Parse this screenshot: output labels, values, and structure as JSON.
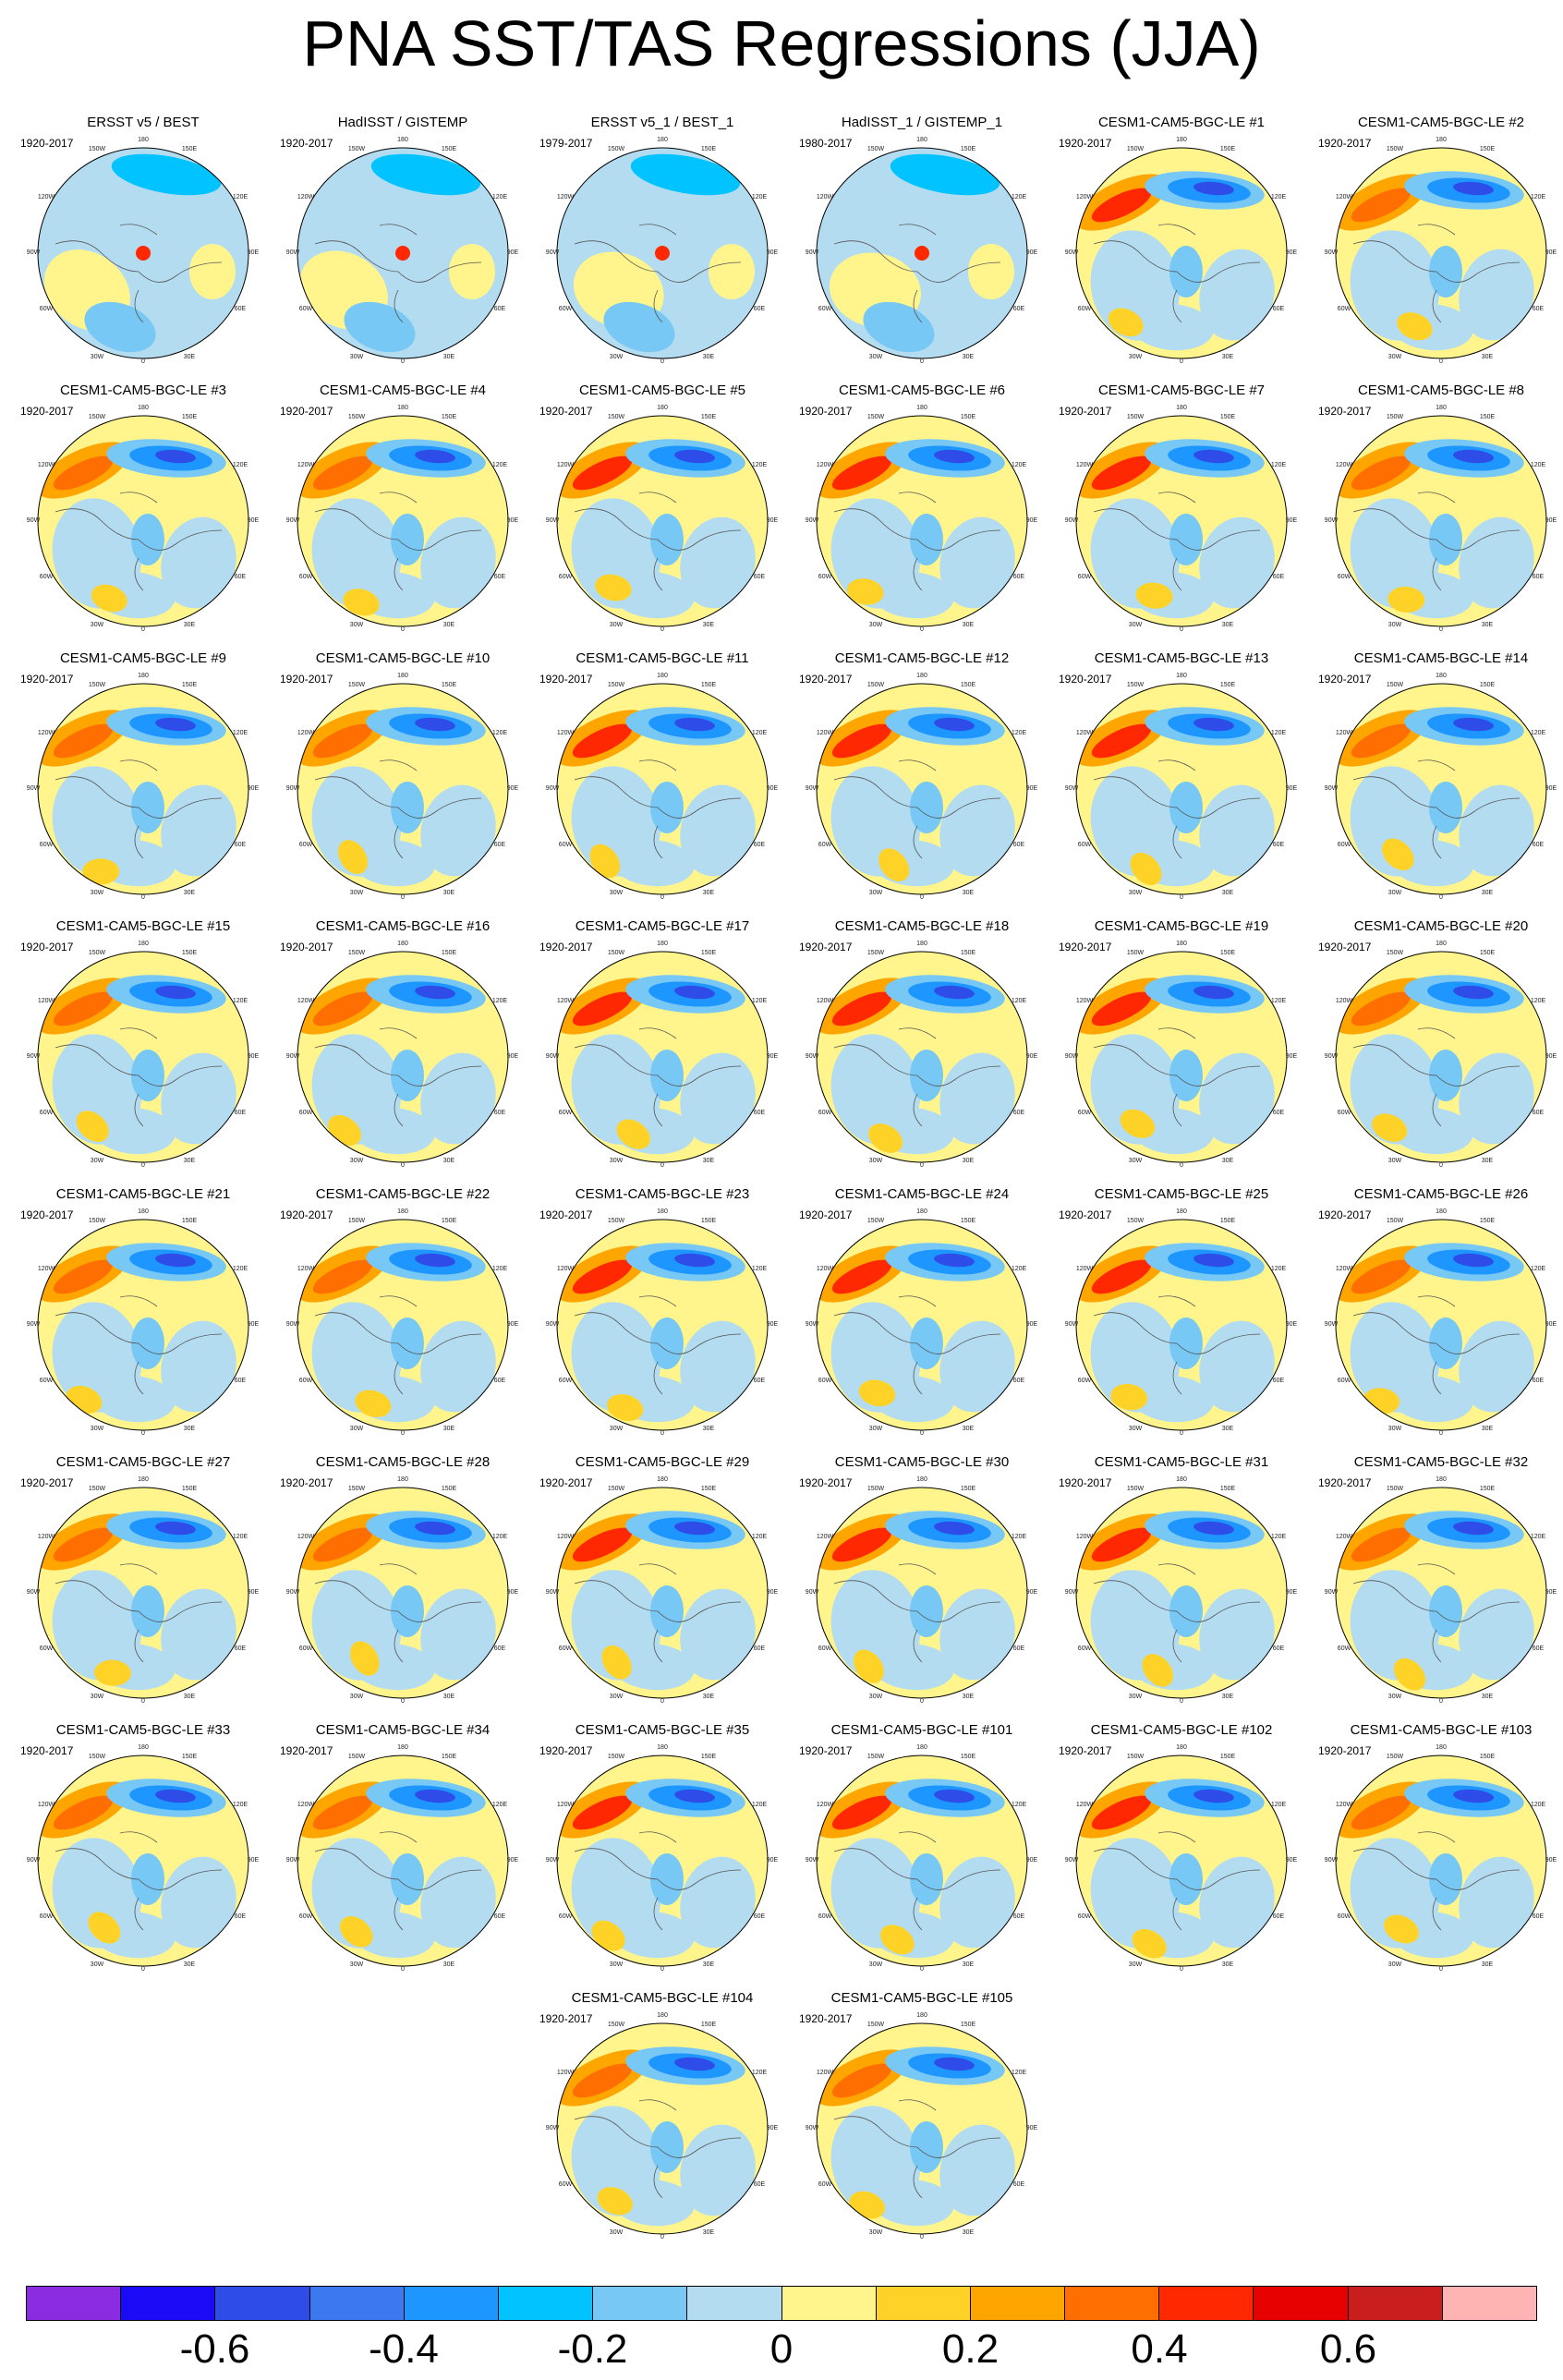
{
  "title": "PNA SST/TAS Regressions (JJA)",
  "map_labels": {
    "top": "180",
    "bottom": "0",
    "left": "90W",
    "right": "90E",
    "tl": "120W",
    "tr": "120E",
    "bl": "60W",
    "br": "60E",
    "ttl": "150W",
    "ttr": "150E",
    "bbl": "30W",
    "bbr": "30E"
  },
  "colors": {
    "land_coast": "#555555",
    "scale": [
      "#8b2be2",
      "#1a0af5",
      "#2d4ce8",
      "#3c78f0",
      "#1e96ff",
      "#00c3ff",
      "#78c8f5",
      "#b4dcf0",
      "#fff58c",
      "#ffd228",
      "#ffa500",
      "#ff6e00",
      "#ff2800",
      "#e60000",
      "#c81e1e",
      "#ffb4b4"
    ]
  },
  "colorbar_labels": [
    "-0.6",
    "-0.4",
    "-0.2",
    "0",
    "0.2",
    "0.4",
    "0.6"
  ],
  "panels": [
    {
      "title": "ERSST v5 / BEST",
      "period": "1920-2017"
    },
    {
      "title": "HadISST / GISTEMP",
      "period": "1920-2017"
    },
    {
      "title": "ERSST v5_1 / BEST_1",
      "period": "1979-2017"
    },
    {
      "title": "HadISST_1 / GISTEMP_1",
      "period": "1980-2017"
    },
    {
      "title": "CESM1-CAM5-BGC-LE #1",
      "period": "1920-2017"
    },
    {
      "title": "CESM1-CAM5-BGC-LE #2",
      "period": "1920-2017"
    },
    {
      "title": "CESM1-CAM5-BGC-LE #3",
      "period": "1920-2017"
    },
    {
      "title": "CESM1-CAM5-BGC-LE #4",
      "period": "1920-2017"
    },
    {
      "title": "CESM1-CAM5-BGC-LE #5",
      "period": "1920-2017"
    },
    {
      "title": "CESM1-CAM5-BGC-LE #6",
      "period": "1920-2017"
    },
    {
      "title": "CESM1-CAM5-BGC-LE #7",
      "period": "1920-2017"
    },
    {
      "title": "CESM1-CAM5-BGC-LE #8",
      "period": "1920-2017"
    },
    {
      "title": "CESM1-CAM5-BGC-LE #9",
      "period": "1920-2017"
    },
    {
      "title": "CESM1-CAM5-BGC-LE #10",
      "period": "1920-2017"
    },
    {
      "title": "CESM1-CAM5-BGC-LE #11",
      "period": "1920-2017"
    },
    {
      "title": "CESM1-CAM5-BGC-LE #12",
      "period": "1920-2017"
    },
    {
      "title": "CESM1-CAM5-BGC-LE #13",
      "period": "1920-2017"
    },
    {
      "title": "CESM1-CAM5-BGC-LE #14",
      "period": "1920-2017"
    },
    {
      "title": "CESM1-CAM5-BGC-LE #15",
      "period": "1920-2017"
    },
    {
      "title": "CESM1-CAM5-BGC-LE #16",
      "period": "1920-2017"
    },
    {
      "title": "CESM1-CAM5-BGC-LE #17",
      "period": "1920-2017"
    },
    {
      "title": "CESM1-CAM5-BGC-LE #18",
      "period": "1920-2017"
    },
    {
      "title": "CESM1-CAM5-BGC-LE #19",
      "period": "1920-2017"
    },
    {
      "title": "CESM1-CAM5-BGC-LE #20",
      "period": "1920-2017"
    },
    {
      "title": "CESM1-CAM5-BGC-LE #21",
      "period": "1920-2017"
    },
    {
      "title": "CESM1-CAM5-BGC-LE #22",
      "period": "1920-2017"
    },
    {
      "title": "CESM1-CAM5-BGC-LE #23",
      "period": "1920-2017"
    },
    {
      "title": "CESM1-CAM5-BGC-LE #24",
      "period": "1920-2017"
    },
    {
      "title": "CESM1-CAM5-BGC-LE #25",
      "period": "1920-2017"
    },
    {
      "title": "CESM1-CAM5-BGC-LE #26",
      "period": "1920-2017"
    },
    {
      "title": "CESM1-CAM5-BGC-LE #27",
      "period": "1920-2017"
    },
    {
      "title": "CESM1-CAM5-BGC-LE #28",
      "period": "1920-2017"
    },
    {
      "title": "CESM1-CAM5-BGC-LE #29",
      "period": "1920-2017"
    },
    {
      "title": "CESM1-CAM5-BGC-LE #30",
      "period": "1920-2017"
    },
    {
      "title": "CESM1-CAM5-BGC-LE #31",
      "period": "1920-2017"
    },
    {
      "title": "CESM1-CAM5-BGC-LE #32",
      "period": "1920-2017"
    },
    {
      "title": "CESM1-CAM5-BGC-LE #33",
      "period": "1920-2017"
    },
    {
      "title": "CESM1-CAM5-BGC-LE #34",
      "period": "1920-2017"
    },
    {
      "title": "CESM1-CAM5-BGC-LE #35",
      "period": "1920-2017"
    },
    {
      "title": "CESM1-CAM5-BGC-LE #101",
      "period": "1920-2017"
    },
    {
      "title": "CESM1-CAM5-BGC-LE #102",
      "period": "1920-2017"
    },
    {
      "title": "CESM1-CAM5-BGC-LE #103",
      "period": "1920-2017"
    },
    {
      "title": "CESM1-CAM5-BGC-LE #104",
      "period": "1920-2017"
    },
    {
      "title": "CESM1-CAM5-BGC-LE #105",
      "period": "1920-2017"
    }
  ]
}
